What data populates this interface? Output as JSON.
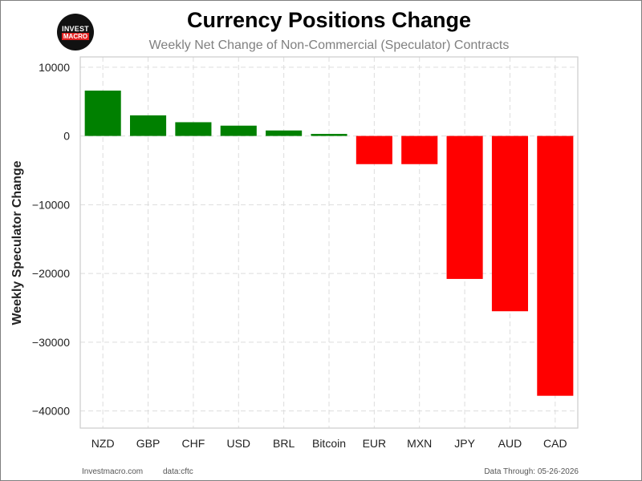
{
  "logo": {
    "line1": "INVEST",
    "line2": "MACRO"
  },
  "footer": {
    "source": "Investmacro.com",
    "data": "data:cftc",
    "through": "Data Through: 05-26-2026"
  },
  "colors": {
    "positive": "#008000",
    "negative": "#ff0000"
  },
  "chart_data": {
    "type": "bar",
    "title": "Currency Positions Change",
    "subtitle": "Weekly Net Change of Non-Commercial (Speculator) Contracts",
    "xlabel": "",
    "ylabel": "Weekly Speculator Change",
    "categories": [
      "NZD",
      "GBP",
      "CHF",
      "USD",
      "BRL",
      "Bitcoin",
      "EUR",
      "MXN",
      "JPY",
      "AUD",
      "CAD"
    ],
    "values": [
      6600,
      3000,
      2000,
      1500,
      800,
      300,
      -4100,
      -4100,
      -20800,
      -25500,
      -37800
    ],
    "ylim": [
      -42500,
      11500
    ],
    "yticks": [
      10000,
      0,
      -10000,
      -20000,
      -30000,
      -40000
    ],
    "ytick_labels": [
      "10000",
      "0",
      "−10000",
      "−20000",
      "−30000",
      "−40000"
    ],
    "grid": true
  }
}
